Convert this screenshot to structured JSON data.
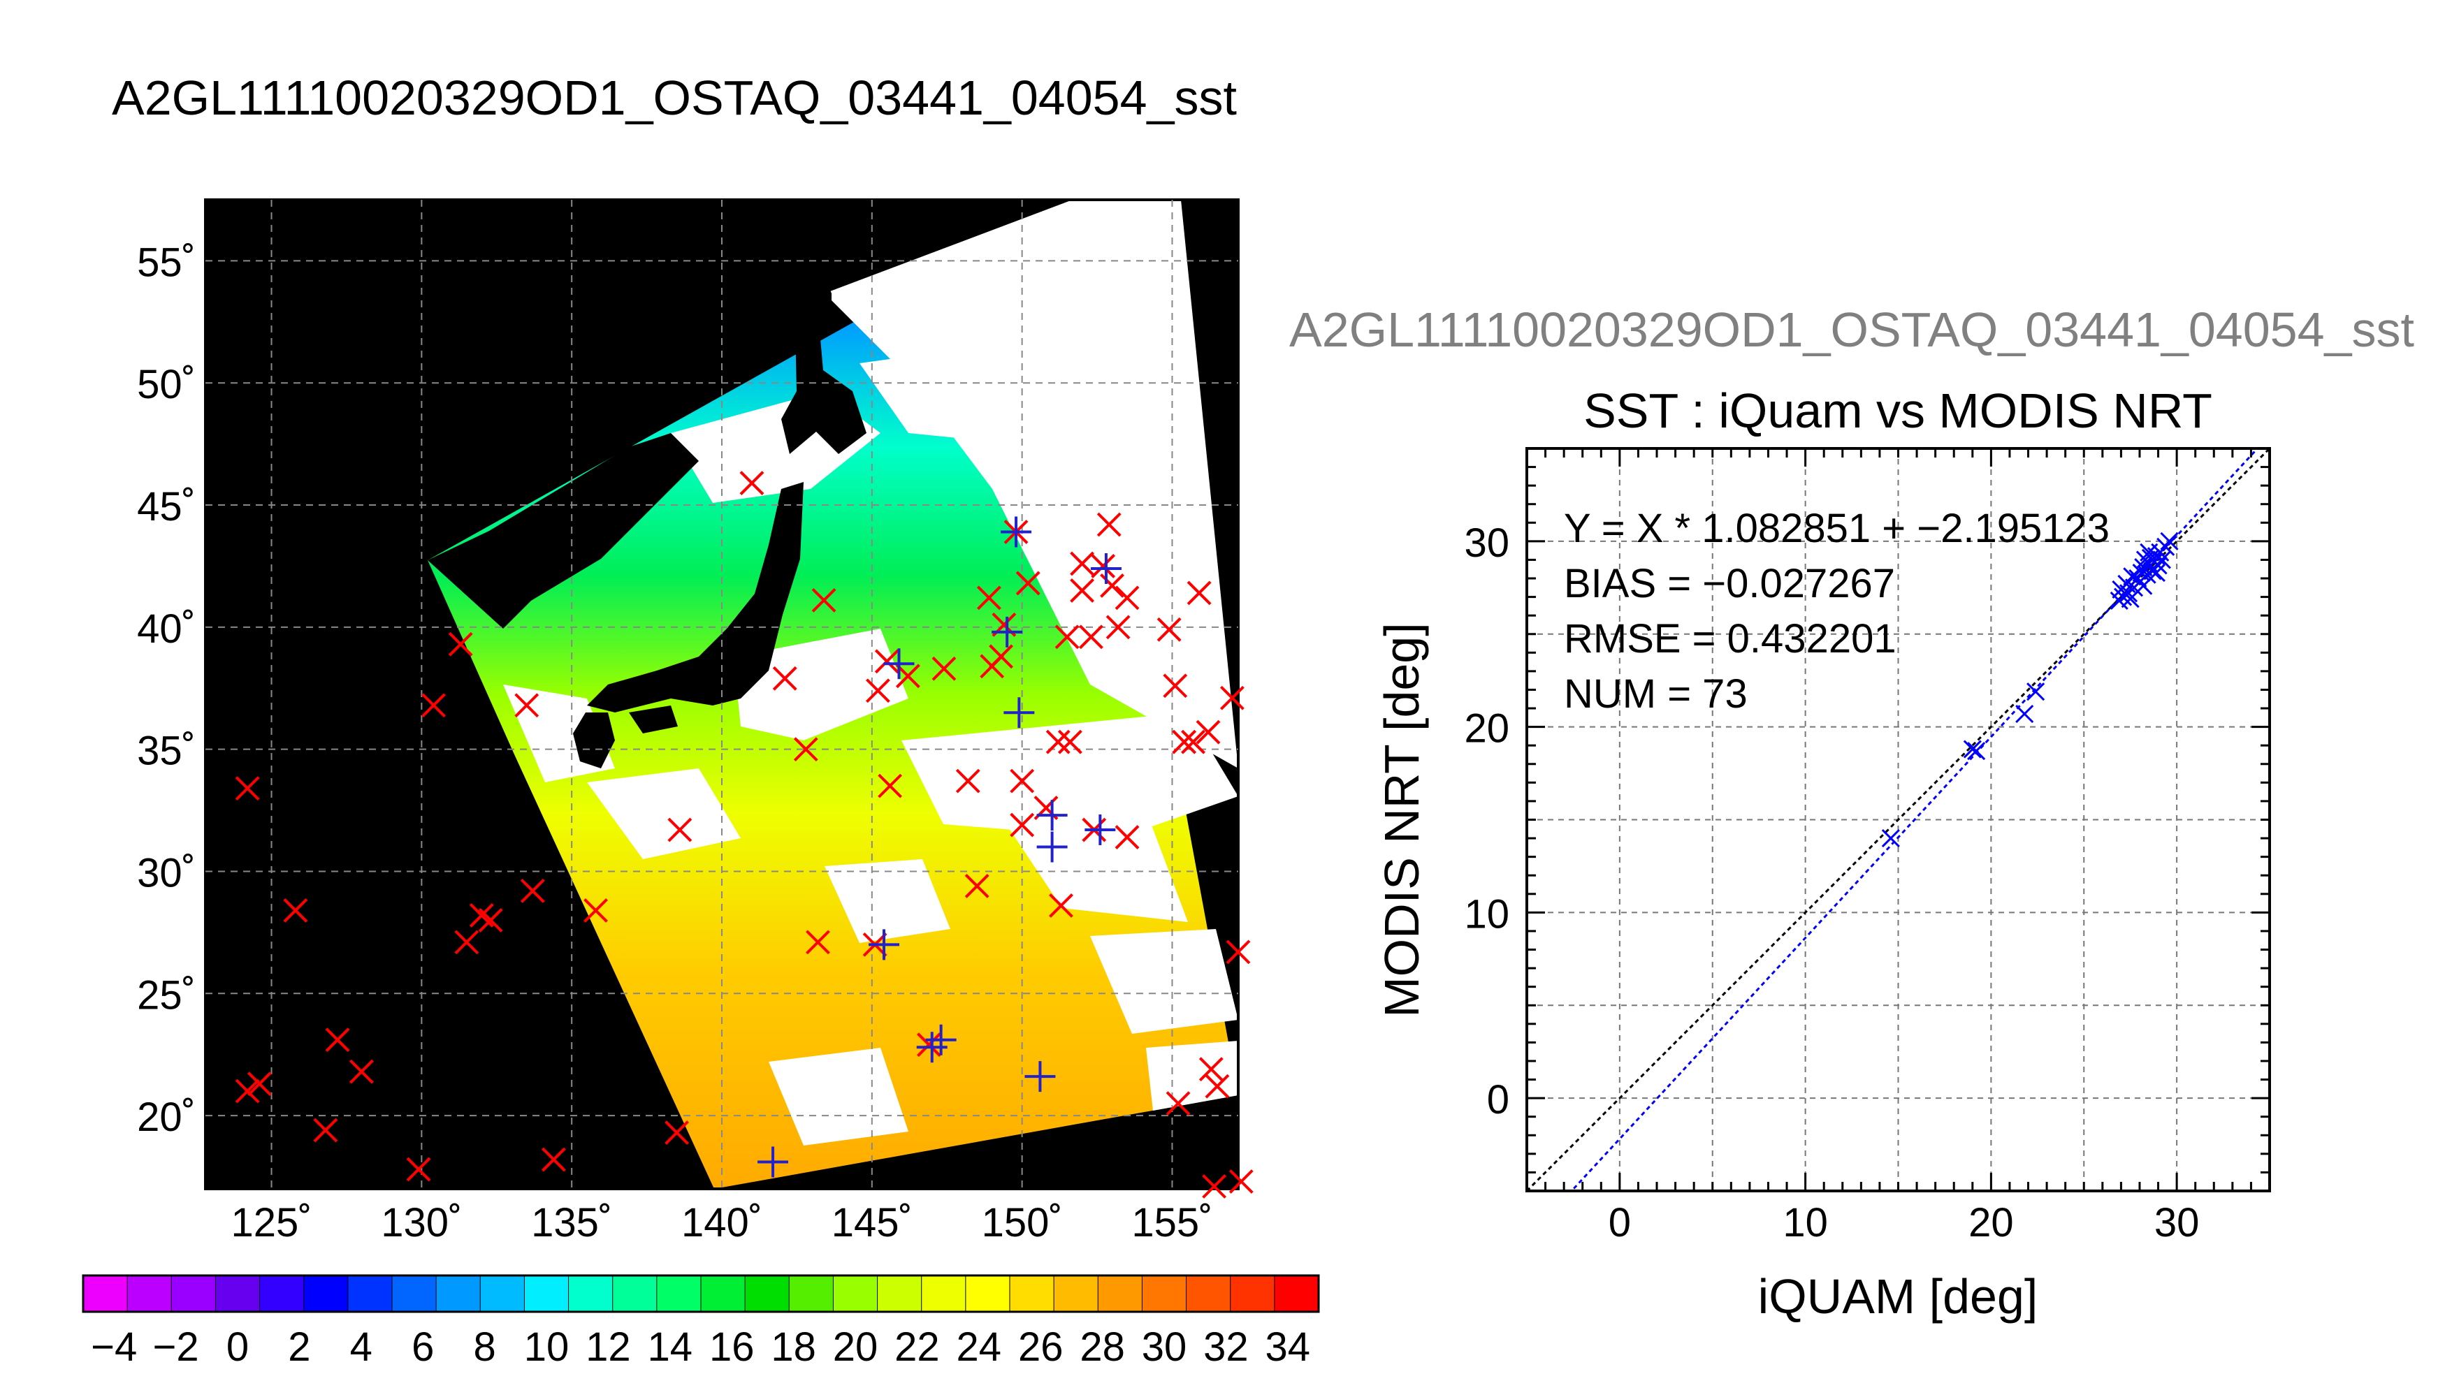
{
  "figure": {
    "main_title": "A2GL11110020329OD1_OSTAQ_03441_04054_sst",
    "secondary_title": "A2GL11110020329OD1_OSTAQ_03441_04054_sst"
  },
  "map": {
    "lat_ticks": [
      "55˚",
      "50˚",
      "45˚",
      "40˚",
      "35˚",
      "30˚",
      "25˚",
      "20˚"
    ],
    "lon_ticks": [
      "125˚",
      "130˚",
      "135˚",
      "140˚",
      "145˚",
      "150˚",
      "155˚"
    ],
    "lon_range": [
      122.8,
      157.2
    ],
    "lat_range": [
      17.0,
      57.5
    ],
    "colors": {
      "background": "#000000",
      "cloud": "#ffffff",
      "red_marker": "#ff0000",
      "blue_marker": "#2222cc"
    },
    "red_markers": [
      [
        124.2,
        33.4
      ],
      [
        124.2,
        21.0
      ],
      [
        124.6,
        21.3
      ],
      [
        125.8,
        28.4
      ],
      [
        126.8,
        19.4
      ],
      [
        127.2,
        23.1
      ],
      [
        128.0,
        21.8
      ],
      [
        129.9,
        17.8
      ],
      [
        130.4,
        36.8
      ],
      [
        131.3,
        39.3
      ],
      [
        131.5,
        27.1
      ],
      [
        132.0,
        28.2
      ],
      [
        132.3,
        28.0
      ],
      [
        133.7,
        29.2
      ],
      [
        133.5,
        36.8
      ],
      [
        134.4,
        18.2
      ],
      [
        135.8,
        28.4
      ],
      [
        138.5,
        19.3
      ],
      [
        138.6,
        31.7
      ],
      [
        141.0,
        45.9
      ],
      [
        142.1,
        37.9
      ],
      [
        142.8,
        35.0
      ],
      [
        143.2,
        27.1
      ],
      [
        143.4,
        41.1
      ],
      [
        145.1,
        27.0
      ],
      [
        145.2,
        37.4
      ],
      [
        145.6,
        33.5
      ],
      [
        145.5,
        38.6
      ],
      [
        146.2,
        38.0
      ],
      [
        146.9,
        22.9
      ],
      [
        147.4,
        38.3
      ],
      [
        148.2,
        33.7
      ],
      [
        148.5,
        29.4
      ],
      [
        148.9,
        41.2
      ],
      [
        149.0,
        38.4
      ],
      [
        149.3,
        38.8
      ],
      [
        149.4,
        40.1
      ],
      [
        149.8,
        43.9
      ],
      [
        150.0,
        33.7
      ],
      [
        150.0,
        31.9
      ],
      [
        150.2,
        41.8
      ],
      [
        150.8,
        32.6
      ],
      [
        151.3,
        28.6
      ],
      [
        151.2,
        35.3
      ],
      [
        151.6,
        35.3
      ],
      [
        151.5,
        39.6
      ],
      [
        152.0,
        41.5
      ],
      [
        152.0,
        42.6
      ],
      [
        152.3,
        39.6
      ],
      [
        152.4,
        31.7
      ],
      [
        152.7,
        42.5
      ],
      [
        152.9,
        44.2
      ],
      [
        153.0,
        41.7
      ],
      [
        153.2,
        40.0
      ],
      [
        153.5,
        41.2
      ],
      [
        153.5,
        31.4
      ],
      [
        154.9,
        39.9
      ],
      [
        155.1,
        37.6
      ],
      [
        155.4,
        35.3
      ],
      [
        155.7,
        35.3
      ],
      [
        155.2,
        20.5
      ],
      [
        155.9,
        41.4
      ],
      [
        156.3,
        21.9
      ],
      [
        156.2,
        35.7
      ],
      [
        156.5,
        21.2
      ],
      [
        157.0,
        37.1
      ],
      [
        157.2,
        26.7
      ],
      [
        156.4,
        17.1
      ],
      [
        157.3,
        17.3
      ]
    ],
    "blue_markers": [
      [
        141.7,
        18.1
      ],
      [
        145.4,
        27.0
      ],
      [
        145.9,
        38.5
      ],
      [
        147.0,
        22.8
      ],
      [
        147.3,
        23.1
      ],
      [
        149.5,
        39.8
      ],
      [
        149.8,
        43.9
      ],
      [
        149.9,
        36.5
      ],
      [
        150.6,
        21.6
      ],
      [
        151.0,
        32.3
      ],
      [
        151.0,
        31.0
      ],
      [
        152.6,
        31.7
      ],
      [
        152.8,
        42.4
      ]
    ]
  },
  "colorbar": {
    "labels": [
      "−4",
      "−2",
      "0",
      "2",
      "4",
      "6",
      "8",
      "10",
      "12",
      "14",
      "16",
      "18",
      "20",
      "22",
      "24",
      "26",
      "28",
      "30",
      "32",
      "34"
    ],
    "range": [
      -5,
      35
    ],
    "colors": [
      "#ee00ff",
      "#bb00ff",
      "#9900ff",
      "#6600ee",
      "#3300ff",
      "#0000ff",
      "#0033ff",
      "#0066ff",
      "#0099ff",
      "#00bbff",
      "#00eeff",
      "#00ffcc",
      "#00ff99",
      "#00ff66",
      "#00ee33",
      "#00dd00",
      "#55ee00",
      "#99ff00",
      "#ccff00",
      "#eeff00",
      "#ffff00",
      "#ffdd00",
      "#ffbb00",
      "#ff9900",
      "#ff7700",
      "#ff5500",
      "#ff3300",
      "#ff0000"
    ]
  },
  "chart_data": {
    "type": "scatter",
    "title": "SST : iQuam vs MODIS NRT",
    "xlabel": "iQUAM [deg]",
    "ylabel": "MODIS NRT [deg]",
    "xlim": [
      -5,
      35
    ],
    "ylim": [
      -5,
      35
    ],
    "x_ticks": [
      "0",
      "10",
      "20",
      "30"
    ],
    "y_ticks": [
      "0",
      "10",
      "20",
      "30"
    ],
    "grid": true,
    "annotations": [
      "Y = X * 1.082851 + −2.195123",
      "BIAS = −0.027267",
      "RMSE = 0.432201",
      "NUM = 73"
    ],
    "fit": {
      "slope": 1.082851,
      "intercept": -2.195123
    },
    "colors": {
      "points": "#0000ff",
      "fit_line": "#0000ff",
      "identity_line": "#000000"
    },
    "points": [
      [
        14.6,
        14.0
      ],
      [
        19.0,
        18.8
      ],
      [
        19.2,
        18.7
      ],
      [
        21.8,
        20.7
      ],
      [
        22.4,
        21.9
      ],
      [
        26.9,
        26.8
      ],
      [
        27.1,
        27.0
      ],
      [
        27.3,
        27.7
      ],
      [
        27.4,
        27.2
      ],
      [
        27.5,
        26.9
      ],
      [
        27.7,
        27.5
      ],
      [
        27.9,
        28.0
      ],
      [
        28.0,
        27.8
      ],
      [
        28.1,
        28.3
      ],
      [
        28.2,
        28.6
      ],
      [
        28.3,
        29.0
      ],
      [
        28.4,
        28.2
      ],
      [
        28.5,
        28.8
      ],
      [
        28.6,
        29.1
      ],
      [
        28.7,
        28.4
      ],
      [
        28.8,
        28.9
      ],
      [
        28.9,
        29.2
      ],
      [
        29.0,
        28.7
      ],
      [
        29.1,
        29.4
      ],
      [
        29.2,
        29.0
      ],
      [
        29.4,
        29.7
      ],
      [
        29.6,
        30.0
      ],
      [
        27.6,
        28.1
      ],
      [
        28.2,
        27.6
      ],
      [
        28.9,
        28.3
      ],
      [
        28.5,
        29.4
      ],
      [
        27.0,
        27.4
      ]
    ]
  }
}
